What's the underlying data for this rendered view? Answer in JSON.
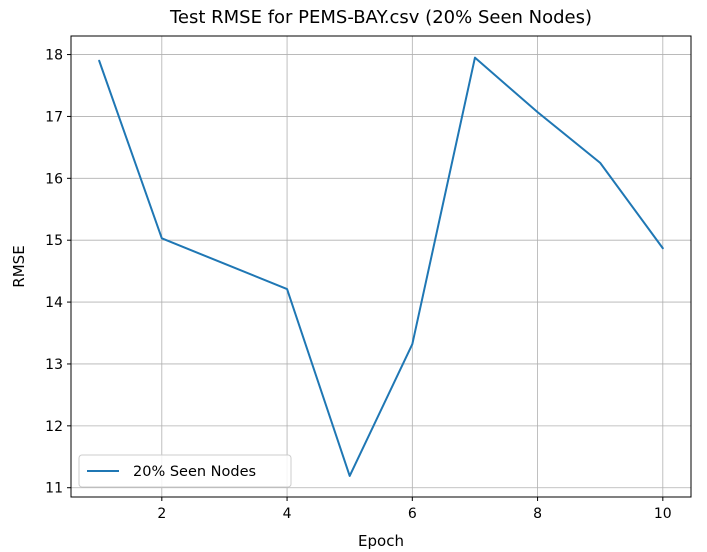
{
  "chart_data": {
    "type": "line",
    "title": "Test RMSE for PEMS-BAY.csv (20% Seen Nodes)",
    "xlabel": "Epoch",
    "ylabel": "RMSE",
    "x": [
      1,
      2,
      3,
      4,
      5,
      6,
      7,
      8,
      9,
      10
    ],
    "series": [
      {
        "name": "20% Seen Nodes",
        "color": "#1f77b4",
        "values": [
          17.9,
          15.03,
          14.62,
          14.21,
          11.19,
          13.32,
          17.95,
          17.07,
          16.25,
          14.87
        ]
      }
    ],
    "xlim": [
      0.55,
      10.45
    ],
    "ylim": [
      10.85,
      18.3
    ],
    "xticks": [
      2,
      4,
      6,
      8,
      10
    ],
    "yticks": [
      11,
      12,
      13,
      14,
      15,
      16,
      17,
      18
    ],
    "grid": true,
    "legend_position": "lower-left"
  }
}
